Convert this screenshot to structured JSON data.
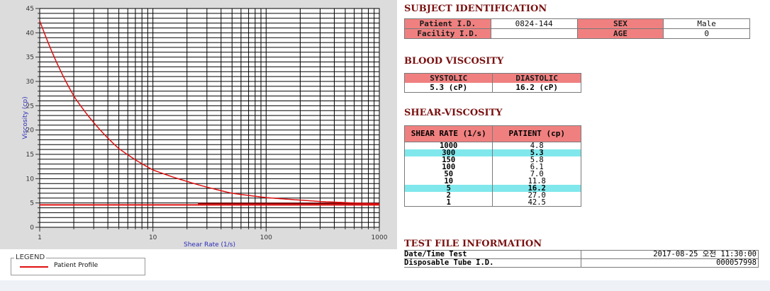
{
  "chart_data": {
    "type": "line",
    "x_scale": "log",
    "xlabel": "Shear Rate (1/s)",
    "ylabel": "Viscosity (cp)",
    "xlim": [
      1,
      1000
    ],
    "ylim": [
      0,
      45
    ],
    "x_ticks": [
      "1",
      "10",
      "100",
      "1000"
    ],
    "y_ticks": [
      "0",
      "5",
      "10",
      "15",
      "20",
      "25",
      "30",
      "35",
      "40",
      "45"
    ],
    "grid": true,
    "series": [
      {
        "name": "Patient Profile",
        "color": "#e01010",
        "x": [
          1,
          2,
          5,
          10,
          50,
          100,
          150,
          300,
          1000
        ],
        "y": [
          42.5,
          27.0,
          16.2,
          11.8,
          7.0,
          6.1,
          5.8,
          5.3,
          4.8
        ]
      }
    ],
    "reference_lines": [
      {
        "y": 4.6,
        "color": "#e01010"
      },
      {
        "y": 4.9,
        "color": "#8b0000",
        "x_start": 25
      }
    ]
  },
  "legend": {
    "title": "LEGEND",
    "items": [
      {
        "label": "Patient Profile",
        "color": "#e01010"
      }
    ]
  },
  "subject": {
    "title": "SUBJECT IDENTIFICATION",
    "patient_id_label": "Patient I.D.",
    "patient_id_value": "0824-144",
    "sex_label": "SEX",
    "sex_value": "Male",
    "facility_id_label": "Facility I.D.",
    "facility_id_value": "",
    "age_label": "AGE",
    "age_value": "0"
  },
  "blood": {
    "title": "BLOOD VISCOSITY",
    "systolic_label": "SYSTOLIC",
    "diastolic_label": "DIASTOLIC",
    "systolic_value": "5.3 (cP)",
    "diastolic_value": "16.2 (cP)"
  },
  "shear": {
    "title": "SHEAR-VISCOSITY",
    "col_rate": "SHEAR RATE (1/s)",
    "col_patient": "PATIENT (cp)",
    "rows": [
      {
        "rate": "1000",
        "value": "4.8",
        "highlight": false
      },
      {
        "rate": "300",
        "value": "5.3",
        "highlight": true
      },
      {
        "rate": "150",
        "value": "5.8",
        "highlight": false
      },
      {
        "rate": "100",
        "value": "6.1",
        "highlight": false
      },
      {
        "rate": "50",
        "value": "7.0",
        "highlight": false
      },
      {
        "rate": "10",
        "value": "11.8",
        "highlight": false
      },
      {
        "rate": "5",
        "value": "16.2",
        "highlight": true
      },
      {
        "rate": "2",
        "value": "27.0",
        "highlight": false
      },
      {
        "rate": "1",
        "value": "42.5",
        "highlight": false
      }
    ]
  },
  "testfile": {
    "title": "TEST FILE INFORMATION",
    "datetime_label": "Date/Time Test",
    "datetime_value": "2017-08-25  오전 11:30:00",
    "tube_label": "Disposable Tube I.D.",
    "tube_value": "000057998"
  }
}
